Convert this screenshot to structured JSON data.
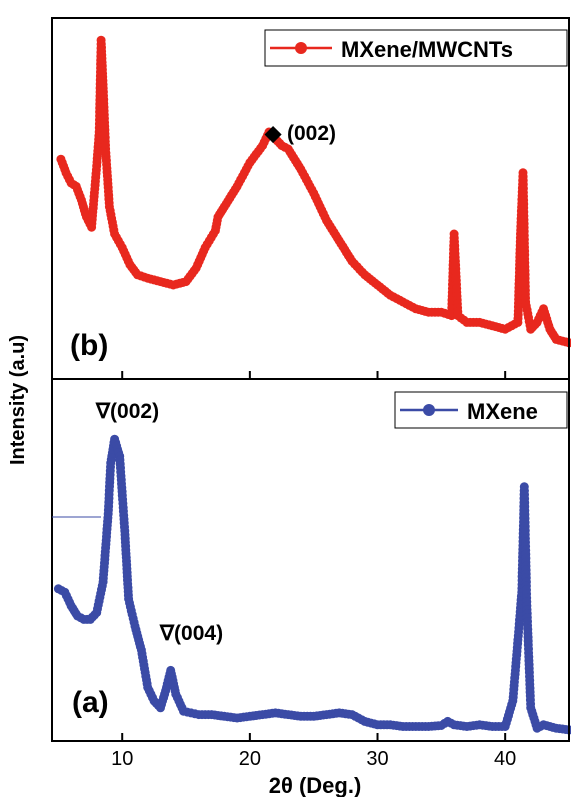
{
  "figure": {
    "ylabel": "Intensity (a.u)",
    "xlabel": "2θ (Deg.)"
  },
  "chart_data": [
    {
      "type": "line",
      "panel_label": "(b)",
      "legend_position": "top-right",
      "xlim": [
        4.5,
        45
      ],
      "ylim": [
        0,
        100
      ],
      "x_ticks": [
        10,
        20,
        30,
        40
      ],
      "series": [
        {
          "name": "MXene/MWCNTs",
          "color": "#e8281e",
          "marker": "circle",
          "points": [
            [
              5.2,
              62
            ],
            [
              5.6,
              58
            ],
            [
              6.0,
              55
            ],
            [
              6.4,
              54
            ],
            [
              6.8,
              50
            ],
            [
              7.2,
              45
            ],
            [
              7.6,
              42
            ],
            [
              8.0,
              60
            ],
            [
              8.2,
              70
            ],
            [
              8.35,
              97
            ],
            [
              8.5,
              84
            ],
            [
              8.7,
              65
            ],
            [
              9.0,
              48
            ],
            [
              9.4,
              40
            ],
            [
              10,
              36
            ],
            [
              10.6,
              31
            ],
            [
              11.2,
              28
            ],
            [
              12,
              27
            ],
            [
              13,
              26
            ],
            [
              14,
              25
            ],
            [
              15,
              26
            ],
            [
              15.8,
              30
            ],
            [
              16.5,
              36
            ],
            [
              17.3,
              41
            ],
            [
              17.5,
              45
            ],
            [
              18,
              48
            ],
            [
              19,
              54
            ],
            [
              20,
              61
            ],
            [
              21,
              66
            ],
            [
              21.5,
              70
            ],
            [
              22,
              68
            ],
            [
              22.5,
              66
            ],
            [
              23,
              65
            ],
            [
              24,
              59
            ],
            [
              25,
              52
            ],
            [
              26,
              44
            ],
            [
              27,
              38
            ],
            [
              28,
              32
            ],
            [
              29,
              28
            ],
            [
              30,
              25
            ],
            [
              31,
              22
            ],
            [
              32,
              20
            ],
            [
              33,
              18
            ],
            [
              34,
              17
            ],
            [
              35,
              17
            ],
            [
              35.8,
              16
            ],
            [
              36,
              40
            ],
            [
              36.3,
              16
            ],
            [
              37,
              14
            ],
            [
              38,
              14
            ],
            [
              39,
              13
            ],
            [
              40,
              12
            ],
            [
              41,
              14
            ],
            [
              41.2,
              40
            ],
            [
              41.4,
              58
            ],
            [
              41.6,
              20
            ],
            [
              42,
              12
            ],
            [
              42.5,
              14
            ],
            [
              43,
              18
            ],
            [
              43.5,
              12
            ],
            [
              44,
              9
            ],
            [
              45,
              8
            ]
          ]
        }
      ],
      "annotations": [
        {
          "text": "◆ (002)",
          "x": 21.8,
          "y": 74
        }
      ]
    },
    {
      "type": "line",
      "panel_label": "(a)",
      "legend_position": "top-right",
      "xlim": [
        4.5,
        45
      ],
      "ylim": [
        0,
        100
      ],
      "x_ticks": [
        10,
        20,
        30,
        40
      ],
      "x_ticklabels": [
        "10",
        "20",
        "30",
        "40"
      ],
      "series": [
        {
          "name": "MXene",
          "color": "#3b4ba6",
          "marker": "circle",
          "points": [
            [
              5,
              43
            ],
            [
              5.5,
              42
            ],
            [
              6,
              38
            ],
            [
              6.5,
              35
            ],
            [
              7,
              34
            ],
            [
              7.5,
              34
            ],
            [
              8,
              36
            ],
            [
              8.5,
              45
            ],
            [
              8.9,
              65
            ],
            [
              9.1,
              80
            ],
            [
              9.4,
              87
            ],
            [
              9.8,
              82
            ],
            [
              10.2,
              60
            ],
            [
              10.5,
              40
            ],
            [
              11,
              32
            ],
            [
              11.5,
              25
            ],
            [
              12,
              14
            ],
            [
              12.5,
              10
            ],
            [
              13,
              8
            ],
            [
              13.4,
              13
            ],
            [
              13.8,
              19
            ],
            [
              14.2,
              12
            ],
            [
              14.8,
              7
            ],
            [
              16,
              6
            ],
            [
              17,
              6
            ],
            [
              18,
              5.5
            ],
            [
              19,
              5
            ],
            [
              20,
              5.5
            ],
            [
              21,
              6
            ],
            [
              22,
              6.5
            ],
            [
              23,
              6
            ],
            [
              24,
              5.5
            ],
            [
              25,
              5.5
            ],
            [
              26,
              6
            ],
            [
              27,
              6.5
            ],
            [
              28,
              6
            ],
            [
              29,
              4
            ],
            [
              30,
              3
            ],
            [
              31,
              3
            ],
            [
              32,
              2.5
            ],
            [
              33,
              2.5
            ],
            [
              34,
              2.5
            ],
            [
              35,
              2.8
            ],
            [
              35.5,
              4
            ],
            [
              36,
              3
            ],
            [
              37,
              2.5
            ],
            [
              38,
              3
            ],
            [
              39,
              2.5
            ],
            [
              40,
              2.5
            ],
            [
              40.6,
              10
            ],
            [
              41,
              28
            ],
            [
              41.3,
              42
            ],
            [
              41.5,
              73
            ],
            [
              41.7,
              38
            ],
            [
              42,
              8
            ],
            [
              42.5,
              2
            ],
            [
              43,
              3
            ],
            [
              44,
              2
            ],
            [
              45,
              1.5
            ]
          ]
        }
      ],
      "annotations": [
        {
          "text": "∇(002)",
          "x": 9.4,
          "y": 90
        },
        {
          "text": "∇(004)",
          "x": 13.6,
          "y": 21
        }
      ]
    }
  ]
}
